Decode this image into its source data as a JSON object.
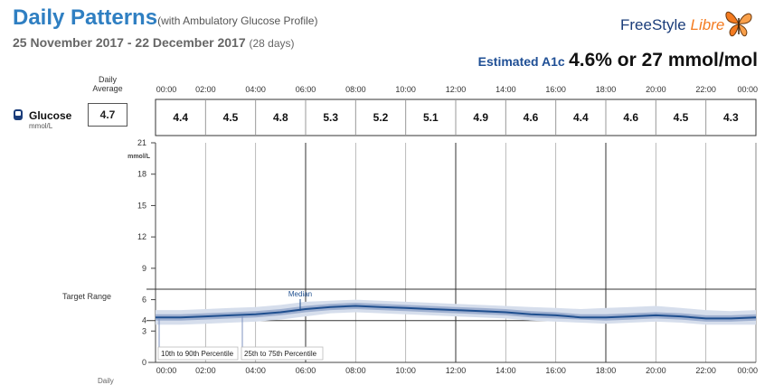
{
  "header": {
    "title": "Daily Patterns",
    "subtitle": "(with Ambulatory Glucose Profile)",
    "date_range": "25 November 2017 - 22 December 2017",
    "days": "(28 days)",
    "logo_freestyle": "FreeStyle",
    "logo_libre": "Libre",
    "a1c_label": "Estimated A1c",
    "a1c_value": "4.6% or 27 mmol/mol"
  },
  "glucose_row": {
    "daily_average_label": "Daily Average",
    "label": "Glucose",
    "unit": "mmol/L",
    "daily_average": "4.7",
    "hourly_averages": [
      "4.4",
      "4.5",
      "4.8",
      "5.3",
      "5.2",
      "5.1",
      "4.9",
      "4.6",
      "4.4",
      "4.6",
      "4.5",
      "4.3"
    ]
  },
  "bottom_label": "Daily",
  "colors": {
    "title": "#2f7fc2",
    "median_line": "#1f4f8f",
    "band_25_75": "#9fb0d0",
    "band_10_90": "#d6deec"
  },
  "chart_data": {
    "type": "area",
    "x_ticks": [
      "00:00",
      "02:00",
      "04:00",
      "06:00",
      "08:00",
      "10:00",
      "12:00",
      "14:00",
      "16:00",
      "18:00",
      "20:00",
      "22:00",
      "00:00"
    ],
    "xlim": [
      0,
      24
    ],
    "ylim": [
      0,
      21
    ],
    "y_ticks": [
      0,
      3,
      4,
      6,
      9,
      12,
      15,
      18,
      21
    ],
    "y_unit": "mmol/L",
    "target_range_label": "Target Range",
    "target_range": [
      4,
      7
    ],
    "annotations": {
      "median": "Median",
      "p10_90": "10th to 90th Percentile",
      "p25_75": "25th to 75th Percentile"
    },
    "x": [
      0,
      1,
      2,
      3,
      4,
      5,
      6,
      7,
      8,
      9,
      10,
      11,
      12,
      13,
      14,
      15,
      16,
      17,
      18,
      19,
      20,
      21,
      22,
      23,
      24
    ],
    "series": [
      {
        "name": "Median",
        "values": [
          4.3,
          4.3,
          4.4,
          4.5,
          4.6,
          4.8,
          5.1,
          5.3,
          5.4,
          5.3,
          5.2,
          5.1,
          5.0,
          4.9,
          4.8,
          4.6,
          4.5,
          4.3,
          4.3,
          4.4,
          4.5,
          4.4,
          4.2,
          4.2,
          4.3
        ]
      },
      {
        "name": "25th to 75th Percentile",
        "low": [
          4.0,
          4.0,
          4.1,
          4.2,
          4.3,
          4.5,
          4.8,
          5.0,
          5.1,
          5.0,
          4.9,
          4.8,
          4.7,
          4.6,
          4.5,
          4.3,
          4.2,
          4.1,
          4.0,
          4.1,
          4.2,
          4.1,
          3.9,
          3.9,
          4.0
        ],
        "high": [
          4.6,
          4.6,
          4.7,
          4.8,
          4.9,
          5.1,
          5.4,
          5.6,
          5.7,
          5.6,
          5.5,
          5.4,
          5.3,
          5.2,
          5.1,
          4.9,
          4.8,
          4.6,
          4.6,
          4.7,
          4.8,
          4.7,
          4.5,
          4.5,
          4.6
        ]
      },
      {
        "name": "10th to 90th Percentile",
        "low": [
          3.6,
          3.6,
          3.7,
          3.8,
          3.9,
          4.1,
          4.4,
          4.7,
          4.8,
          4.7,
          4.6,
          4.5,
          4.4,
          4.3,
          4.2,
          4.0,
          3.9,
          3.8,
          3.7,
          3.8,
          3.9,
          3.8,
          3.6,
          3.6,
          3.6
        ],
        "high": [
          5.0,
          5.0,
          5.1,
          5.2,
          5.3,
          5.5,
          5.8,
          5.9,
          6.0,
          5.9,
          5.8,
          5.7,
          5.6,
          5.5,
          5.4,
          5.3,
          5.2,
          5.1,
          5.2,
          5.3,
          5.4,
          5.2,
          5.0,
          4.9,
          5.0
        ]
      }
    ]
  }
}
